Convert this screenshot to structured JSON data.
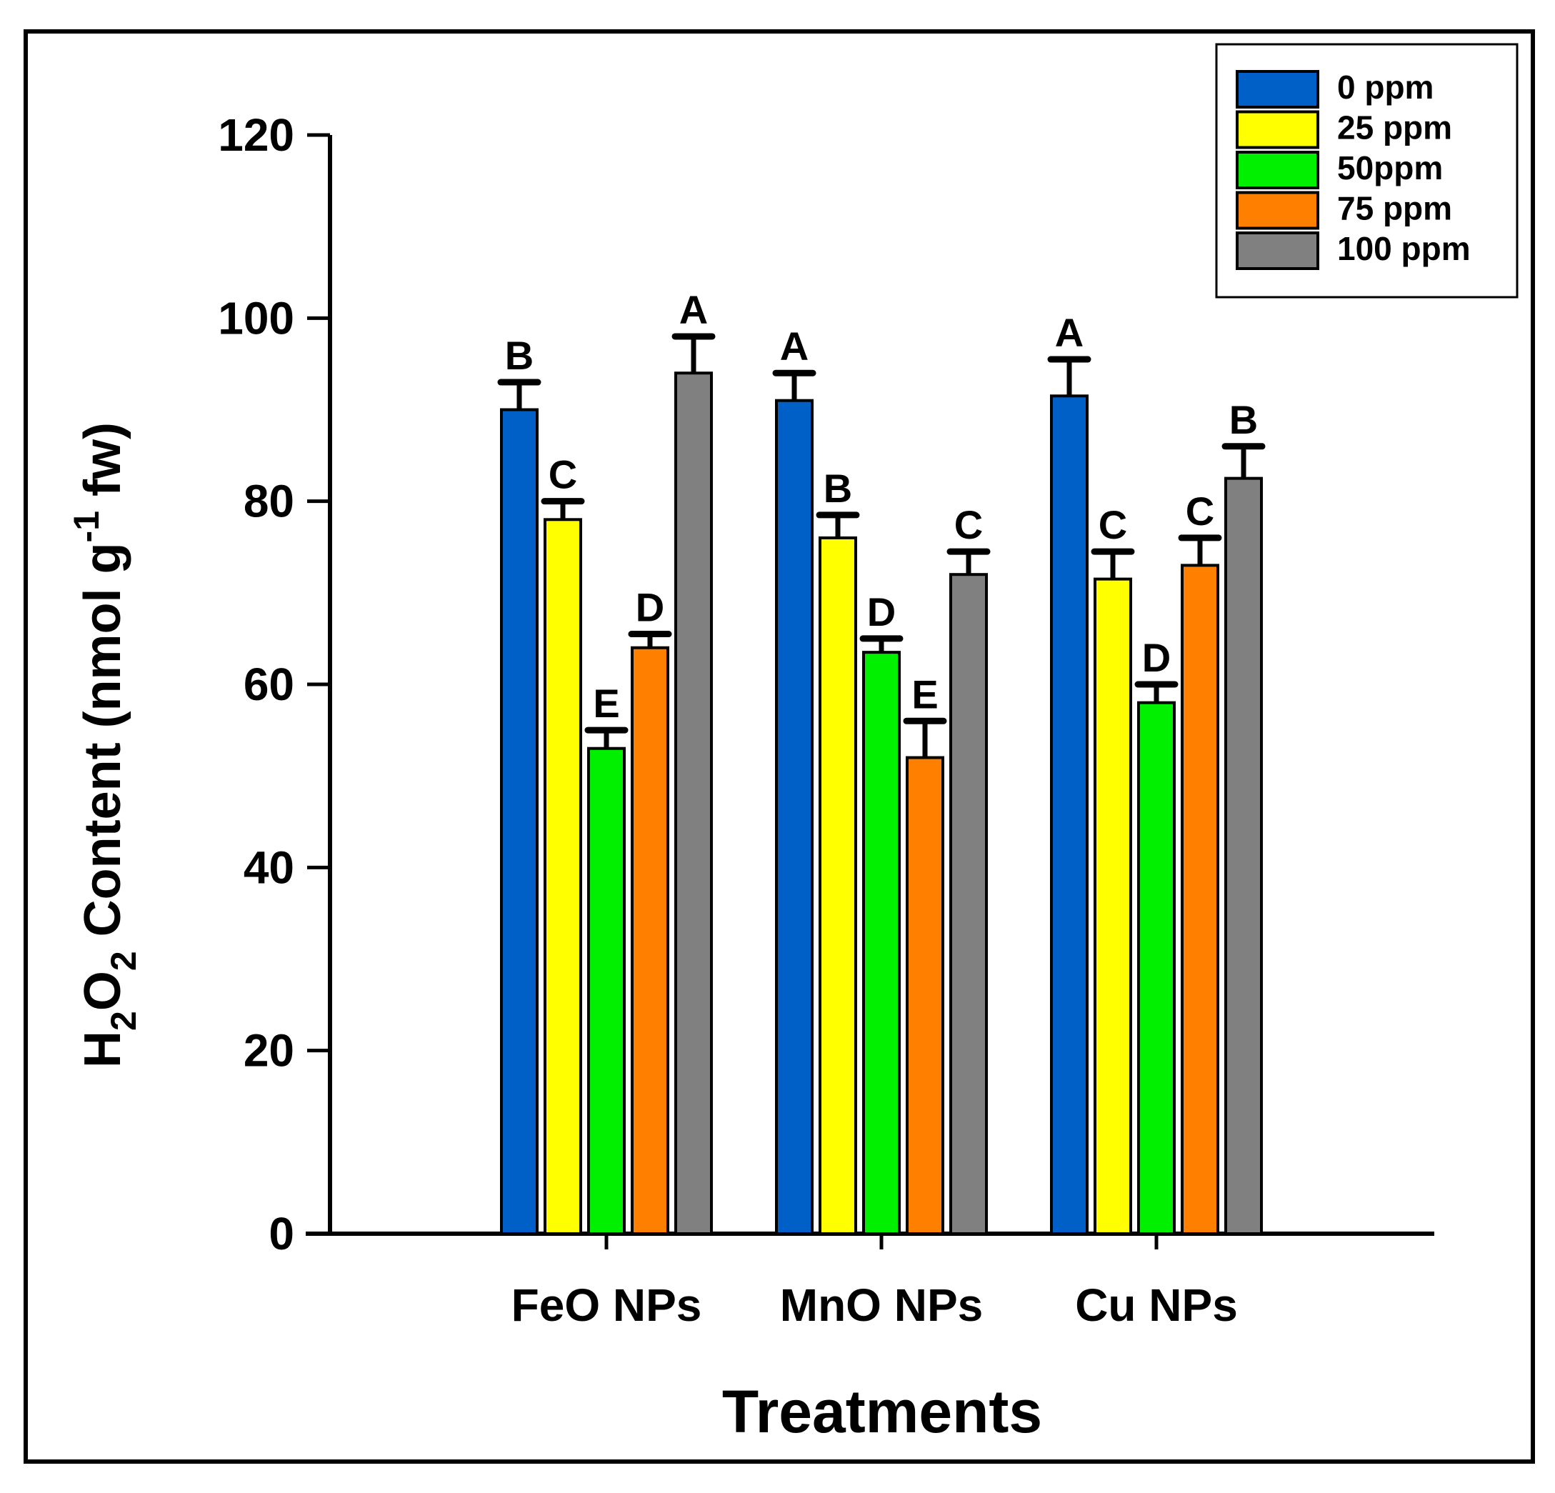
{
  "chart_data": {
    "type": "bar",
    "title": "",
    "xlabel": "Treatments",
    "ylabel": {
      "prefix": "H",
      "sub1": "2",
      "mid1": "O",
      "sub2": "2",
      "mid2": " Content (nmol g",
      "sup": "-1",
      "suffix": " fw)"
    },
    "ylim": [
      0,
      120
    ],
    "yticks": [
      "0",
      "20",
      "40",
      "60",
      "80",
      "100",
      "120"
    ],
    "categories": [
      "FeO NPs",
      "MnO NPs",
      "Cu NPs"
    ],
    "legend_position": "top-right",
    "grid": false,
    "series": [
      {
        "name": "0 ppm",
        "color": "#0060c8",
        "values": [
          90,
          91,
          91.5
        ],
        "errors": [
          3,
          3,
          4
        ],
        "letters": [
          "B",
          "A",
          "A"
        ]
      },
      {
        "name": "25 ppm",
        "color": "#ffff00",
        "values": [
          78,
          76,
          71.5
        ],
        "errors": [
          2,
          2.5,
          3
        ],
        "letters": [
          "C",
          "B",
          "C"
        ]
      },
      {
        "name": "50ppm",
        "color": "#00f000",
        "values": [
          53,
          63.5,
          58
        ],
        "errors": [
          2,
          1.5,
          2
        ],
        "letters": [
          "E",
          "D",
          "D"
        ]
      },
      {
        "name": "75 ppm",
        "color": "#ff8000",
        "values": [
          64,
          52,
          73
        ],
        "errors": [
          1.5,
          4,
          3
        ],
        "letters": [
          "D",
          "E",
          "C"
        ]
      },
      {
        "name": "100 ppm",
        "color": "#808080",
        "values": [
          94,
          72,
          82.5
        ],
        "errors": [
          4,
          2.5,
          3.5
        ],
        "letters": [
          "A",
          "C",
          "B"
        ]
      }
    ]
  }
}
